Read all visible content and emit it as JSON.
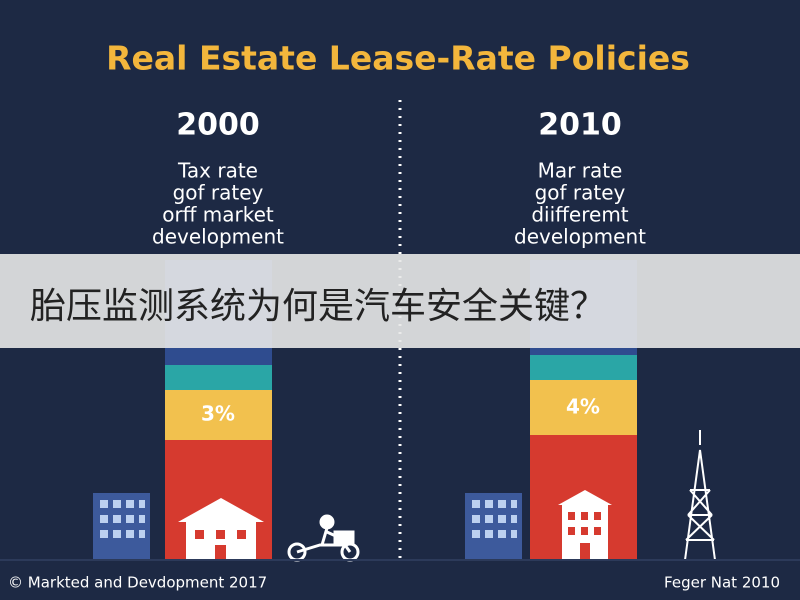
{
  "title": "Real Estate Lease-Rate Policies",
  "panels": [
    {
      "year": "2000",
      "lines": [
        "Tax rate",
        "gof ratey",
        "orff market",
        "development"
      ],
      "bar_label": "3%"
    },
    {
      "year": "2010",
      "lines": [
        "Mar rate",
        "gof ratey",
        "diifferemt",
        "development"
      ],
      "bar_label": "4%"
    }
  ],
  "banner": "胎压监测系统为何是汽车安全关键？",
  "footer": {
    "left": "© Markted and Devdopment 2017",
    "right": "Feger Nat 2010"
  }
}
